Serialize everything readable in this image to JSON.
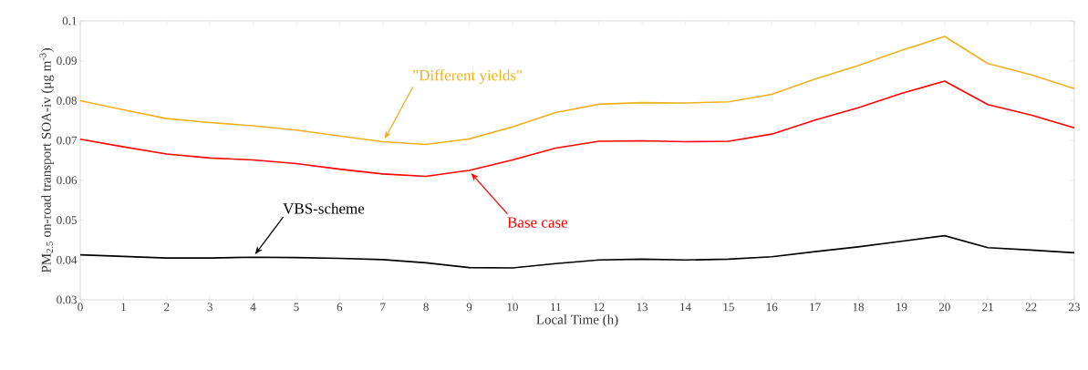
{
  "chart_data": {
    "type": "line",
    "xlabel": "Local Time (h)",
    "ylabel": "PM$_{2.5}$ on-road transport SOA-iv (μg m$^{-3}$)",
    "x": [
      0,
      1,
      2,
      3,
      4,
      5,
      6,
      7,
      8,
      9,
      10,
      11,
      12,
      13,
      14,
      15,
      16,
      17,
      18,
      19,
      20,
      21,
      22,
      23
    ],
    "xlim": [
      0,
      23
    ],
    "xticks": [
      0,
      1,
      2,
      3,
      4,
      5,
      6,
      7,
      8,
      9,
      10,
      11,
      12,
      13,
      14,
      15,
      16,
      17,
      18,
      19,
      20,
      21,
      22,
      23
    ],
    "ylim": [
      0.03,
      0.1
    ],
    "yticks": [
      0.03,
      0.04,
      0.05,
      0.06,
      0.07,
      0.08,
      0.09,
      0.1
    ],
    "grid": false,
    "legend": false,
    "marker": "none",
    "line_style": "solid",
    "series": [
      {
        "name": "\"Different yields\"",
        "color": "#edb120",
        "values": [
          0.08,
          0.0777,
          0.0755,
          0.0745,
          0.0737,
          0.0726,
          0.0711,
          0.0697,
          0.069,
          0.0704,
          0.0734,
          0.077,
          0.0791,
          0.0795,
          0.0794,
          0.0797,
          0.0816,
          0.0854,
          0.0888,
          0.0926,
          0.0961,
          0.0893,
          0.0865,
          0.083
        ]
      },
      {
        "name": "Base case",
        "color": "#ff0000",
        "values": [
          0.0703,
          0.0684,
          0.0666,
          0.0656,
          0.0651,
          0.0642,
          0.0628,
          0.0616,
          0.061,
          0.0625,
          0.0651,
          0.0681,
          0.0698,
          0.0699,
          0.0697,
          0.0698,
          0.0716,
          0.0751,
          0.0782,
          0.0818,
          0.0849,
          0.079,
          0.0764,
          0.0732
        ]
      },
      {
        "name": "VBS-scheme",
        "color": "#000000",
        "values": [
          0.0413,
          0.0409,
          0.0405,
          0.0405,
          0.0407,
          0.0406,
          0.0404,
          0.0401,
          0.0393,
          0.0381,
          0.038,
          0.0391,
          0.04,
          0.0402,
          0.04,
          0.0402,
          0.0408,
          0.0421,
          0.0433,
          0.0447,
          0.0461,
          0.0431,
          0.0425,
          0.0418
        ]
      }
    ]
  }
}
